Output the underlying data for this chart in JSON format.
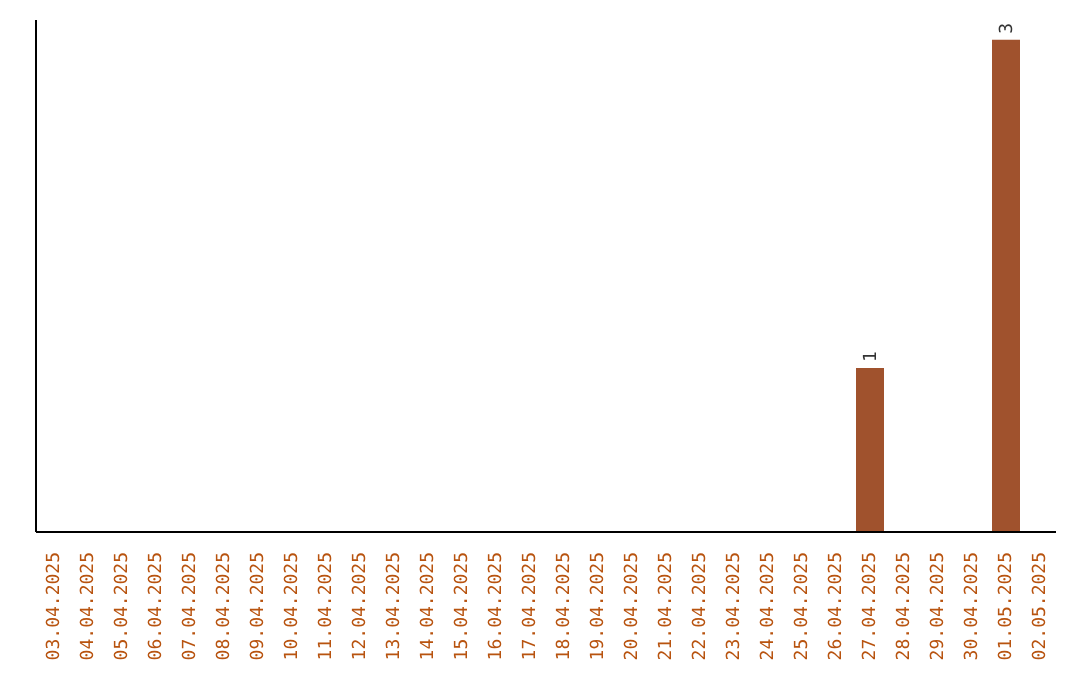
{
  "chart_data": {
    "type": "bar",
    "categories": [
      "03.04.2025",
      "04.04.2025",
      "05.04.2025",
      "06.04.2025",
      "07.04.2025",
      "08.04.2025",
      "09.04.2025",
      "10.04.2025",
      "11.04.2025",
      "12.04.2025",
      "13.04.2025",
      "14.04.2025",
      "15.04.2025",
      "16.04.2025",
      "17.04.2025",
      "18.04.2025",
      "19.04.2025",
      "20.04.2025",
      "21.04.2025",
      "22.04.2025",
      "23.04.2025",
      "24.04.2025",
      "25.04.2025",
      "26.04.2025",
      "27.04.2025",
      "28.04.2025",
      "29.04.2025",
      "30.04.2025",
      "01.05.2025",
      "02.05.2025"
    ],
    "values": [
      null,
      null,
      null,
      null,
      null,
      null,
      null,
      null,
      null,
      null,
      null,
      null,
      null,
      null,
      null,
      null,
      null,
      null,
      null,
      null,
      null,
      null,
      null,
      null,
      1,
      null,
      null,
      null,
      3,
      null
    ],
    "data_labels": true,
    "color": "#a0522d",
    "grid": false,
    "tick_labels": "x"
  }
}
